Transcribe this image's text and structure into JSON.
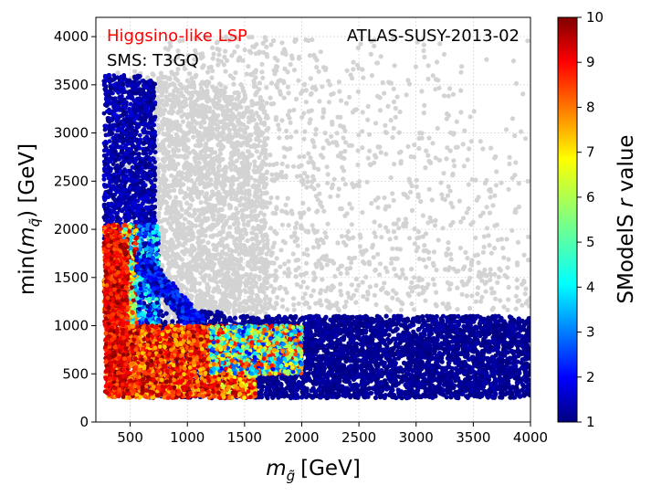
{
  "chart_data": {
    "type": "scatter",
    "title": "",
    "xlabel": "m_g̃ [GeV]",
    "xlabel_parts": {
      "sym": "m",
      "sub": "g̃",
      "unit": "[GeV]"
    },
    "ylabel": "min(m_q̃) [GeV]",
    "ylabel_parts": {
      "pre": "min(",
      "sym": "m",
      "sub": "q̃",
      "post": ") [GeV]"
    },
    "xlim": [
      200,
      4000
    ],
    "ylim": [
      0,
      4200
    ],
    "xticks": [
      500,
      1000,
      1500,
      2000,
      2500,
      3000,
      3500,
      4000
    ],
    "yticks": [
      0,
      500,
      1000,
      1500,
      2000,
      2500,
      3000,
      3500,
      4000
    ],
    "grid": true,
    "annotations": {
      "lsp": "Higgsino-like LSP",
      "sms": "SMS: T3GQ",
      "analysis": "ATLAS-SUSY-2013-02"
    },
    "colorbar": {
      "label_pre": "SModelS ",
      "label_var": "r",
      "label_post": " value",
      "min": 1,
      "max": 10,
      "ticks": [
        1,
        2,
        3,
        4,
        5,
        6,
        7,
        8,
        9,
        10
      ],
      "colormap": "jet"
    },
    "regions": [
      {
        "name": "excluded-gray",
        "color": "#d3d3d3",
        "x": [
          300,
          4000
        ],
        "y": [
          1000,
          4000
        ]
      },
      {
        "name": "low-r-band",
        "x": [
          650,
          4000
        ],
        "y": [
          250,
          1150
        ],
        "r": 1
      },
      {
        "name": "high-r-wedge",
        "x": [
          300,
          2000
        ],
        "y": [
          250,
          1000
        ],
        "r": [
          5,
          10
        ]
      },
      {
        "name": "light-gluino-column",
        "x": [
          270,
          720
        ],
        "y": [
          250,
          3600
        ],
        "r": [
          1,
          10
        ]
      }
    ]
  },
  "colors": {
    "excluded": "#d3d3d3",
    "lsp_text": "#ff0000",
    "text": "#000000"
  }
}
